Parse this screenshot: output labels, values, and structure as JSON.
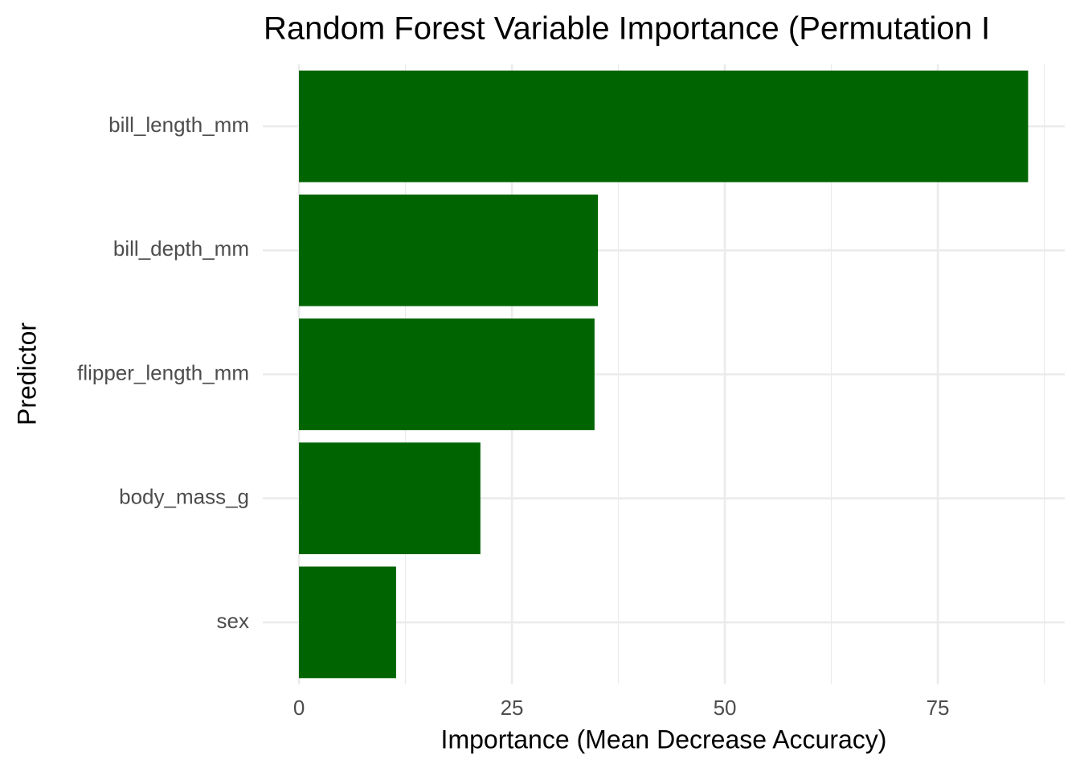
{
  "chart_data": {
    "type": "hbar",
    "title": "Random Forest Variable Importance (Permutation I",
    "x_label": "Importance (Mean Decrease Accuracy)",
    "y_label": "Predictor",
    "categories": [
      "bill_length_mm",
      "bill_depth_mm",
      "flipper_length_mm",
      "body_mass_g",
      "sex"
    ],
    "values": [
      85.6,
      35.1,
      34.7,
      21.3,
      11.4
    ],
    "color": "#006400",
    "xlim": [
      -4.25,
      89.9
    ],
    "xticks": [
      0,
      25,
      50,
      75
    ],
    "grid": true,
    "minor_grid": true
  }
}
